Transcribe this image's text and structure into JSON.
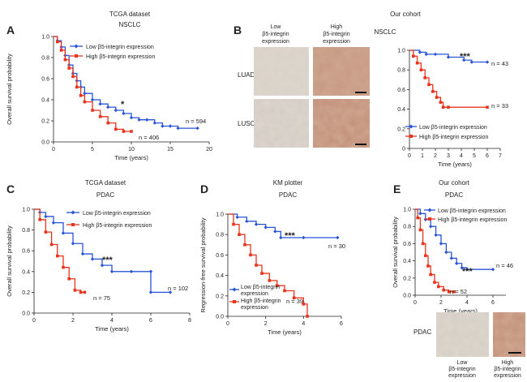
{
  "colors": {
    "low": "#2855d8",
    "high": "#e8341c"
  },
  "panels": {
    "A": {
      "label": "A",
      "title1": "TCGA dataset",
      "title2": "NSCLC",
      "legend_low": "Low β5-integrin expression",
      "legend_high": "High β5-integrin expression",
      "sig": "*",
      "n_low_label": "n = 594",
      "n_high_label": "n = 406"
    },
    "B": {
      "label": "B",
      "title1": "Our cohort",
      "title2": "NSCLC",
      "col_low": [
        "Low",
        "β5-integrin",
        "expression"
      ],
      "col_high": [
        "High",
        "β5-integrin",
        "expression"
      ],
      "row1": "LUAD",
      "row2": "LUSC",
      "legend_low": "Low β5-integrin expression",
      "legend_high": "High β5-integrin expression",
      "sig": "***",
      "n_low_label": "n = 43",
      "n_high_label": "n = 33"
    },
    "C": {
      "label": "C",
      "title1": "TCGA dataset",
      "title2": "PDAC",
      "legend_low": "Low β5-integrin expression",
      "legend_high": "High β5-integrin expression",
      "sig": "***",
      "n_low_label": "n = 102",
      "n_high_label": "n = 75"
    },
    "D": {
      "label": "D",
      "title1": "KM plotter",
      "title2": "PDAC",
      "legend_low": [
        "Low β5-integrin",
        "expression"
      ],
      "legend_high": [
        "High β5-integrin",
        "expression"
      ],
      "sig": "***",
      "n_low_label": "n = 30",
      "n_high_label": "n = 39"
    },
    "E": {
      "label": "E",
      "title1": "Our cohort",
      "title2": "PDAC",
      "legend_low": "Low β5-integrin expression",
      "legend_high": "High β5-integrin expression",
      "sig": "***",
      "n_low_label": "n = 46",
      "n_high_label": "n = 52",
      "row": "PDAC",
      "col_low": [
        "Low",
        "β5-integrin",
        "expression"
      ],
      "col_high": [
        "High",
        "β5-integrin",
        "expression"
      ]
    }
  },
  "chart_data": [
    {
      "type": "line",
      "panel": "A",
      "xlabel": "Time (years)",
      "ylabel": "Overall survival probability",
      "xlim": [
        0,
        20
      ],
      "ylim": [
        0,
        1
      ],
      "xticks": [
        "0",
        "5",
        "10",
        "15",
        "20"
      ],
      "yticks": [
        "0.0",
        "0.2",
        "0.4",
        "0.6",
        "0.8",
        "1.0"
      ],
      "series": [
        {
          "name": "Low β5-integrin expression",
          "color": "low",
          "x": [
            0,
            0.5,
            1,
            1.5,
            2,
            2.5,
            3,
            3.5,
            4,
            5,
            6,
            7,
            8,
            9,
            10,
            11,
            12,
            13,
            14,
            15,
            16,
            18.5
          ],
          "y": [
            1.0,
            0.96,
            0.9,
            0.82,
            0.73,
            0.65,
            0.58,
            0.52,
            0.46,
            0.4,
            0.36,
            0.33,
            0.3,
            0.27,
            0.23,
            0.21,
            0.21,
            0.18,
            0.15,
            0.15,
            0.13,
            0.13
          ]
        },
        {
          "name": "High β5-integrin expression",
          "color": "high",
          "x": [
            0,
            0.5,
            1,
            1.5,
            2,
            2.5,
            3,
            3.5,
            4,
            5,
            6,
            7,
            8,
            9,
            10
          ],
          "y": [
            1.0,
            0.95,
            0.87,
            0.78,
            0.7,
            0.62,
            0.52,
            0.44,
            0.38,
            0.3,
            0.24,
            0.18,
            0.12,
            0.1,
            0.1
          ]
        }
      ]
    },
    {
      "type": "line",
      "panel": "B",
      "xlabel": "Time (years)",
      "ylabel": "",
      "xlim": [
        0,
        7
      ],
      "ylim": [
        0,
        1
      ],
      "xticks": [
        "0",
        "1",
        "2",
        "3",
        "4",
        "5",
        "6",
        "7"
      ],
      "yticks": [
        "0",
        "0.2",
        "0.4",
        "0.6",
        "0.8",
        "1.0"
      ],
      "series": [
        {
          "name": "Low β5-integrin expression",
          "color": "low",
          "x": [
            0,
            0.8,
            1.3,
            2.0,
            3.0,
            4.2,
            4.8,
            6.0
          ],
          "y": [
            1.0,
            0.98,
            0.96,
            0.96,
            0.93,
            0.9,
            0.88,
            0.88
          ]
        },
        {
          "name": "High β5-integrin expression",
          "color": "high",
          "x": [
            0,
            0.3,
            0.6,
            0.9,
            1.2,
            1.5,
            1.8,
            2.1,
            2.4,
            2.6,
            3.0,
            6.0
          ],
          "y": [
            1.0,
            0.94,
            0.87,
            0.8,
            0.72,
            0.65,
            0.58,
            0.52,
            0.47,
            0.42,
            0.42,
            0.42
          ]
        }
      ]
    },
    {
      "type": "line",
      "panel": "C",
      "xlabel": "Time (years)",
      "ylabel": "Overall survival probability",
      "xlim": [
        0,
        8
      ],
      "ylim": [
        0,
        1
      ],
      "xticks": [
        "0",
        "2",
        "4",
        "6",
        "8"
      ],
      "yticks": [
        "0.0",
        "0.2",
        "0.4",
        "0.6",
        "0.8",
        "1.0"
      ],
      "series": [
        {
          "name": "Low β5-integrin expression",
          "color": "low",
          "x": [
            0,
            0.3,
            0.6,
            1,
            1.5,
            2,
            2.5,
            3,
            3.5,
            4,
            5,
            6,
            6.0,
            7
          ],
          "y": [
            1.0,
            0.97,
            0.93,
            0.87,
            0.77,
            0.67,
            0.57,
            0.52,
            0.46,
            0.4,
            0.4,
            0.4,
            0.2,
            0.2
          ]
        },
        {
          "name": "High β5-integrin expression",
          "color": "high",
          "x": [
            0,
            0.3,
            0.6,
            0.9,
            1.2,
            1.5,
            1.8,
            2.1,
            2.4,
            2.6
          ],
          "y": [
            1.0,
            0.9,
            0.78,
            0.66,
            0.55,
            0.44,
            0.33,
            0.22,
            0.2,
            0.2
          ]
        }
      ]
    },
    {
      "type": "line",
      "panel": "D",
      "xlabel": "Time (years)",
      "ylabel": "Regression-free survival probability",
      "xlim": [
        0,
        6
      ],
      "ylim": [
        0,
        1
      ],
      "xticks": [
        "0",
        "2",
        "4",
        "6"
      ],
      "yticks": [
        "0.0",
        "0.2",
        "0.4",
        "0.6",
        "0.8",
        "1.0"
      ],
      "series": [
        {
          "name": "Low β5-integrin expression",
          "color": "low",
          "x": [
            0,
            0.5,
            1.0,
            1.5,
            2.0,
            2.5,
            2.8,
            4.0,
            5.8
          ],
          "y": [
            1.0,
            0.97,
            0.93,
            0.9,
            0.87,
            0.83,
            0.77,
            0.77,
            0.77
          ]
        },
        {
          "name": "High β5-integrin expression",
          "color": "high",
          "x": [
            0,
            0.3,
            0.6,
            0.9,
            1.2,
            1.5,
            1.8,
            2.2,
            2.6,
            3.0,
            3.5,
            4.0,
            4.2
          ],
          "y": [
            1.0,
            0.9,
            0.8,
            0.7,
            0.6,
            0.5,
            0.42,
            0.35,
            0.3,
            0.25,
            0.18,
            0.12,
            0.0
          ]
        }
      ]
    },
    {
      "type": "line",
      "panel": "E",
      "xlabel": "Time (years)",
      "ylabel": "Overall survival probability",
      "xlim": [
        0,
        7
      ],
      "ylim": [
        0,
        1
      ],
      "xticks": [
        "0",
        "2",
        "4",
        "6"
      ],
      "yticks": [
        "0.0",
        "0.2",
        "0.4",
        "0.6",
        "0.8",
        "1.0"
      ],
      "series": [
        {
          "name": "Low β5-integrin expression",
          "color": "low",
          "x": [
            0,
            0.4,
            0.8,
            1.2,
            1.6,
            2.0,
            2.4,
            2.8,
            3.2,
            3.6,
            4.0,
            6.0
          ],
          "y": [
            1.0,
            0.95,
            0.88,
            0.8,
            0.7,
            0.6,
            0.5,
            0.43,
            0.37,
            0.32,
            0.3,
            0.3
          ]
        },
        {
          "name": "High β5-integrin expression",
          "color": "high",
          "x": [
            0,
            0.2,
            0.4,
            0.6,
            0.8,
            1.0,
            1.2,
            1.5,
            1.8,
            2.2,
            2.6,
            3.0
          ],
          "y": [
            1.0,
            0.9,
            0.76,
            0.6,
            0.46,
            0.34,
            0.24,
            0.15,
            0.1,
            0.06,
            0.04,
            0.04
          ]
        }
      ]
    }
  ]
}
